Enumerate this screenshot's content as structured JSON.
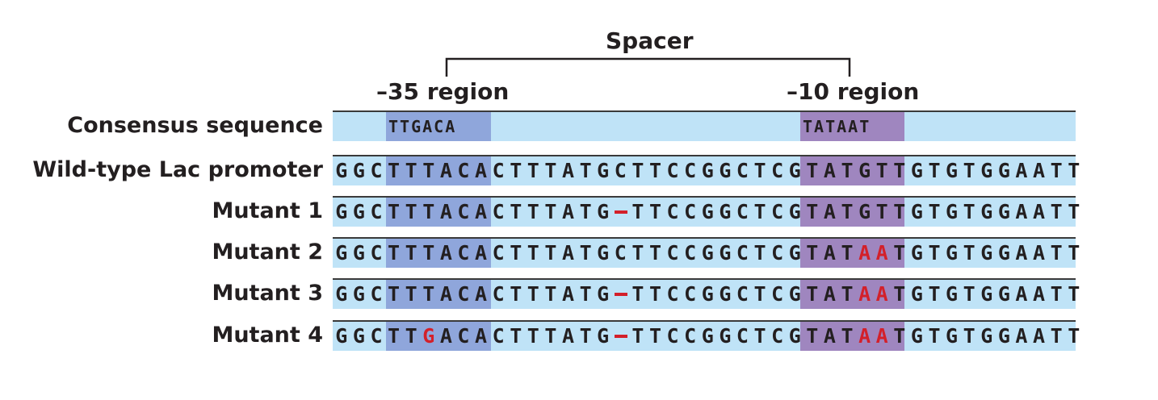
{
  "spacer_label": "Spacer",
  "region_35_label": "–35 region",
  "region_10_label": "–10 region",
  "consensus": {
    "label": "Consensus sequence",
    "minus35": "TTGACA",
    "minus10": "TATAAT"
  },
  "rows": [
    {
      "label": "Wild-type Lac promoter",
      "sequence": "GGCTTTACACTTTATGCTTCCGGCTCGTATGTTGTGTGGAATT",
      "mutations": [],
      "deletions": []
    },
    {
      "label": "Mutant 1",
      "sequence": "GGCTTTACACTTTATG-TTCCGGCTCGTATGTTGTGTGGAATT",
      "mutations": [],
      "deletions": [
        16
      ]
    },
    {
      "label": "Mutant 2",
      "sequence": "GGCTTTACACTTTATGCTTCCGGCTCGTATAATGTGTGGAATT",
      "mutations": [
        30,
        31
      ],
      "deletions": []
    },
    {
      "label": "Mutant 3",
      "sequence": "GGCTTTACACTTTATG-TTCCGGCTCGTATAATGTGTGGAATT",
      "mutations": [
        30,
        31
      ],
      "deletions": [
        16
      ]
    },
    {
      "label": "Mutant 4",
      "sequence": "GGCTTGACACTTTATG-TTCCGGCTCGTATAATGTGTGGAATT",
      "mutations": [
        5,
        30,
        31
      ],
      "deletions": [
        16
      ]
    }
  ],
  "colors": {
    "bar": "#bfe3f7",
    "minus35_box": "#8fa6db",
    "minus10_box": "#9f86bf",
    "mutation": "#d3202a"
  }
}
